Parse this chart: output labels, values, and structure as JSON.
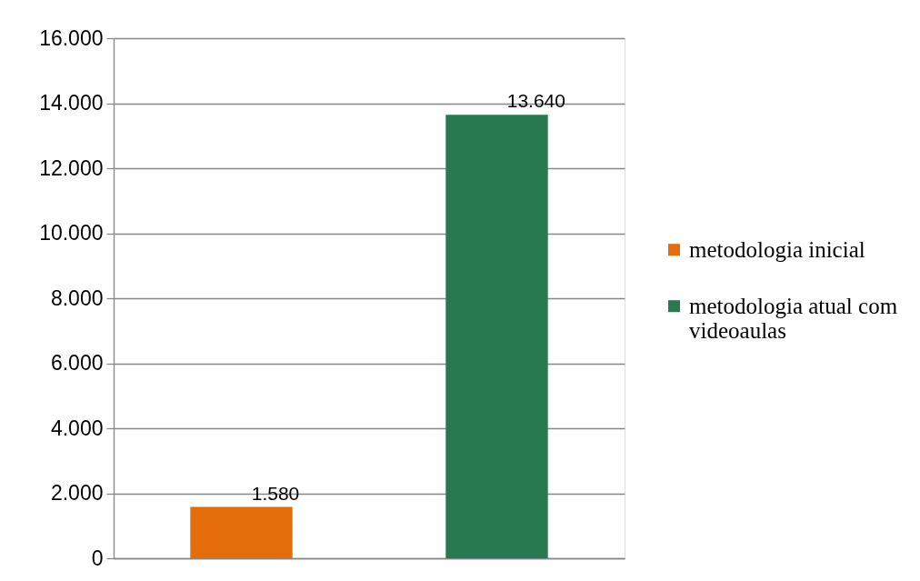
{
  "chart_data": {
    "type": "bar",
    "categories": [
      null,
      null
    ],
    "series": [
      {
        "name": "metodologia inicial",
        "color": "#e46c0a",
        "values": [
          1580,
          null
        ],
        "value_labels": [
          "1.580",
          null
        ]
      },
      {
        "name": "metodologia atual com videoaulas",
        "color": "#287850",
        "values": [
          null,
          13640
        ],
        "value_labels": [
          null,
          "13.640"
        ]
      }
    ],
    "ylim": [
      0,
      16000
    ],
    "yticks": [
      {
        "value": 0,
        "label": "0"
      },
      {
        "value": 2000,
        "label": "2.000"
      },
      {
        "value": 4000,
        "label": "4.000"
      },
      {
        "value": 6000,
        "label": "6.000"
      },
      {
        "value": 8000,
        "label": "8.000"
      },
      {
        "value": 10000,
        "label": "10.000"
      },
      {
        "value": 12000,
        "label": "12.000"
      },
      {
        "value": 14000,
        "label": "14.000"
      },
      {
        "value": 16000,
        "label": "16.000"
      }
    ],
    "grid": "y",
    "legend": "right",
    "tick_labels": "y"
  }
}
